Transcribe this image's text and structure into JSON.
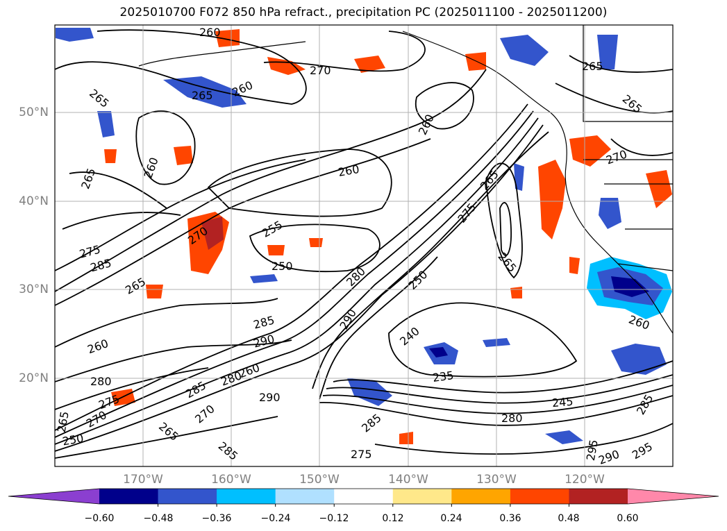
{
  "title": "2025010700 F072 850 hPa refract., precipitation PC (2025011100 - 2025011200)",
  "lat_labels": [
    "50°N",
    "40°N",
    "30°N",
    "20°N"
  ],
  "lon_labels": [
    "170°W",
    "160°W",
    "150°W",
    "140°W",
    "130°W",
    "120°W"
  ],
  "colorbar": {
    "ticks": [
      "−0.60",
      "−0.48",
      "−0.36",
      "−0.24",
      "−0.12",
      "0.12",
      "0.24",
      "0.36",
      "0.48",
      "0.60"
    ],
    "colors": [
      "#8b3fd0",
      "#00008b",
      "#3355cc",
      "#00bfff",
      "#b0e0ff",
      "#ffffff",
      "#ffe88a",
      "#ffa500",
      "#ff4500",
      "#b22222",
      "#ff88aa"
    ]
  },
  "contour_labels": [
    "265",
    "265",
    "260",
    "270",
    "260",
    "265",
    "260",
    "265",
    "275",
    "285",
    "270",
    "255",
    "250",
    "260",
    "260",
    "265",
    "265",
    "280",
    "265",
    "275",
    "250",
    "265",
    "290",
    "285",
    "290",
    "260",
    "240",
    "280",
    "285",
    "270",
    "280",
    "275",
    "270",
    "290",
    "235",
    "245",
    "285",
    "280",
    "285",
    "295",
    "290",
    "295",
    "275",
    "260",
    "270",
    "285",
    "260",
    "265",
    "250",
    "265"
  ],
  "colors": {
    "fill_blue": "#3355cc",
    "fill_cyan": "#00bfff",
    "fill_navy": "#00008b",
    "fill_orange": "#ff8c00",
    "fill_red": "#e03c00",
    "fill_darkred": "#b22222",
    "fill_yellow": "#ffd54f",
    "contour": "#000000",
    "grid": "#b0b0b0",
    "axis_label": "#7f7f7f"
  }
}
